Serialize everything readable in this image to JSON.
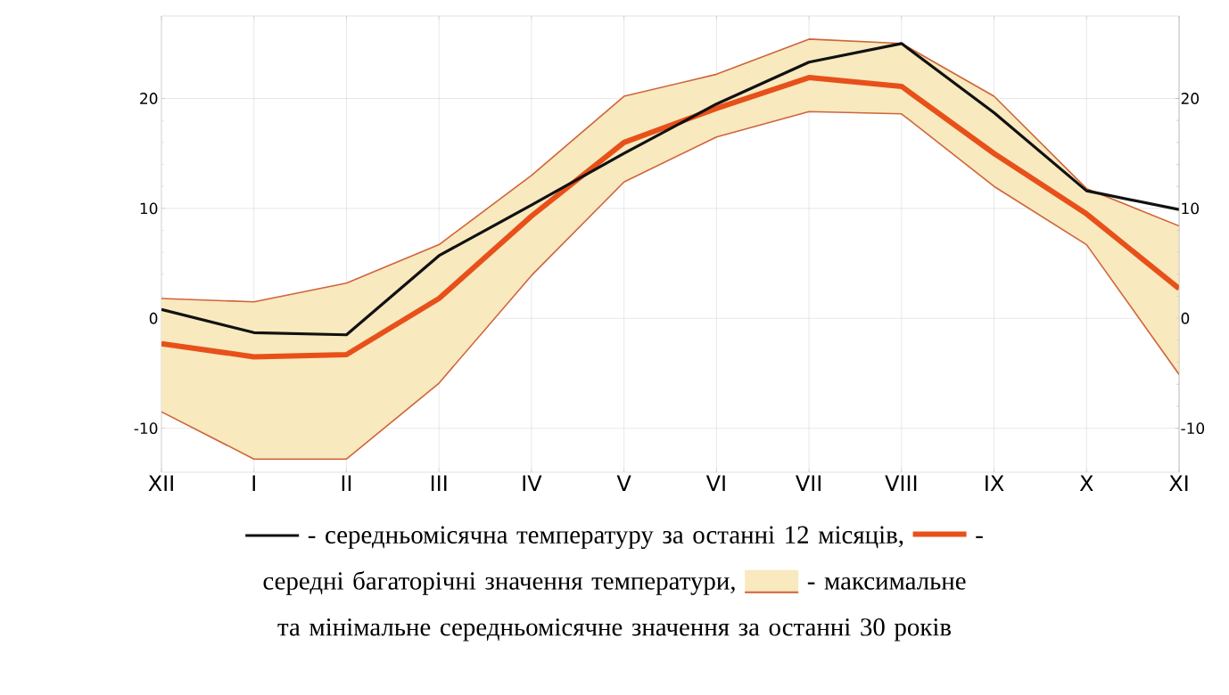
{
  "chart_data": {
    "type": "line",
    "categories": [
      "XII",
      "I",
      "II",
      "III",
      "IV",
      "V",
      "VI",
      "VII",
      "VIII",
      "IX",
      "X",
      "XI"
    ],
    "series": [
      {
        "name": "- середньомісячна температуру за останні 12 місяців,",
        "color": "#111111",
        "values": [
          0.8,
          -1.3,
          -1.5,
          5.7,
          10.3,
          15,
          19.5,
          23.3,
          25,
          18.7,
          11.6,
          9.9
        ]
      },
      {
        "name": "- середні багаторічні значення температури,",
        "color": "#e8501a",
        "values": [
          -2.3,
          -3.5,
          -3.3,
          1.8,
          9.3,
          16,
          19.1,
          21.9,
          21.1,
          15,
          9.5,
          2.7
        ]
      },
      {
        "name": "- максимальне та мінімальне середньомісячне значення за останні 30 років",
        "color": "#d0643a",
        "values": [
          1.8,
          1.5,
          3.2,
          6.7,
          13,
          20.2,
          22.2,
          25.4,
          25,
          20.2,
          11.8,
          8.4
        ],
        "lower": [
          -8.5,
          -12.8,
          -12.8,
          -5.9,
          3.9,
          12.4,
          16.5,
          18.8,
          18.6,
          12,
          6.7,
          -5.1
        ],
        "upper": [
          1.8,
          1.5,
          3.2,
          6.7,
          13,
          20.2,
          22.2,
          25.4,
          25,
          20.2,
          11.8,
          8.4
        ]
      },
      {
        "color": "#d0643a",
        "values": [
          -8.5,
          -12.8,
          -12.8,
          -5.9,
          3.9,
          12.4,
          16.5,
          18.8,
          18.6,
          12,
          6.7,
          -5.1
        ]
      }
    ],
    "ylim": [
      -14,
      27.5
    ],
    "yticks": [
      -10,
      0,
      10,
      20
    ],
    "y2lim": [
      -14,
      27.5
    ],
    "y2ticks": [
      -10,
      0,
      10,
      20
    ],
    "grid": true,
    "legend": "bottom"
  }
}
